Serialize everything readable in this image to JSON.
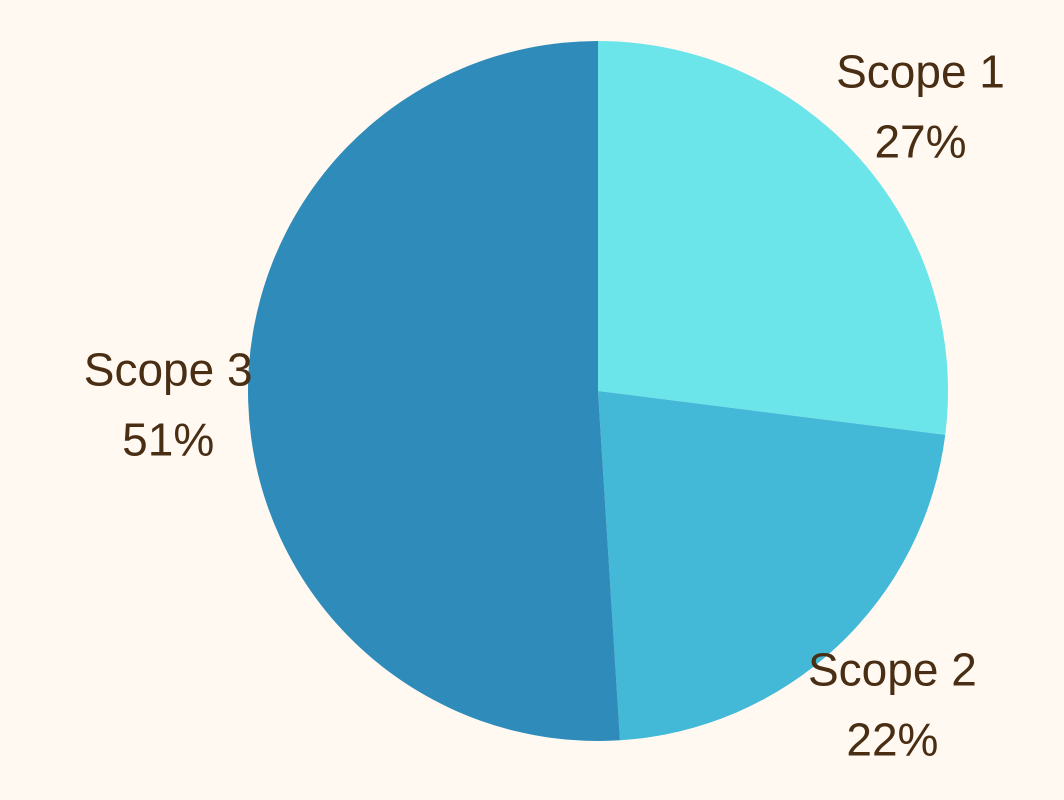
{
  "chart_data": {
    "type": "pie",
    "slices": [
      {
        "label": "Scope 1",
        "value": 27,
        "value_label": "27%",
        "color": "#6CE5EA"
      },
      {
        "label": "Scope 2",
        "value": 22,
        "value_label": "22%",
        "color": "#43B8D7"
      },
      {
        "label": "Scope 3",
        "value": 51,
        "value_label": "51%",
        "color": "#2E8BBA"
      }
    ],
    "start_angle_deg": 0,
    "direction": "clockwise",
    "legend": "none"
  },
  "colors": {
    "background": "#FFF9F2",
    "label_text": "#4A2E14"
  }
}
